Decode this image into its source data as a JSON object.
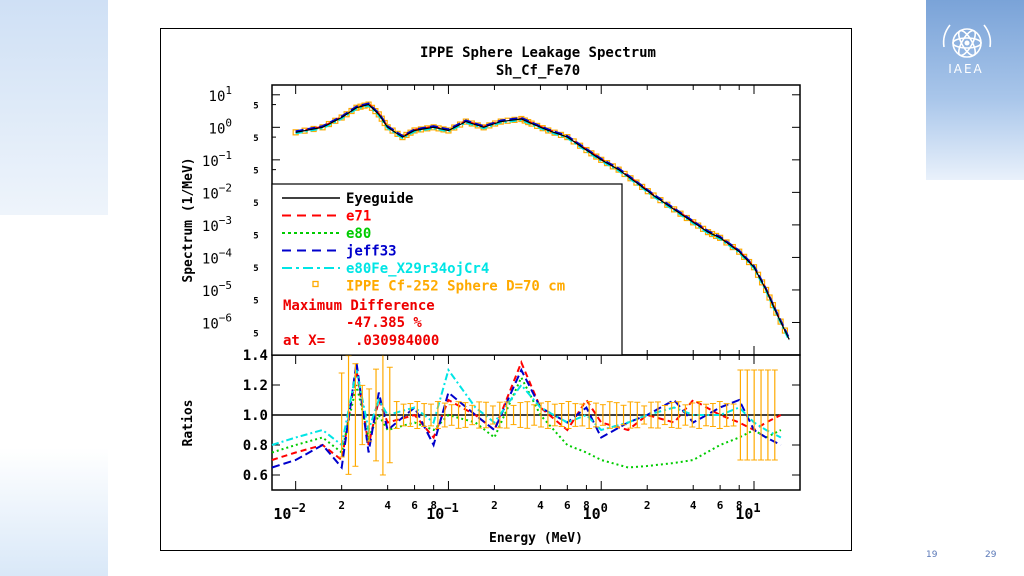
{
  "slide": {
    "logo_text": "IAEA",
    "footer_year": "19",
    "page_number": "29"
  },
  "colors": {
    "eyeguide": "#000000",
    "e71": "#ff0000",
    "e80": "#00cc00",
    "jeff33": "#0000cc",
    "e80fe": "#00e5e5",
    "exp": "#ffaa00",
    "maxdiff": "#ee0000"
  },
  "chart_data": [
    {
      "type": "line",
      "title": "IPPE Sphere Leakage Spectrum",
      "subtitle": "Sh_Cf_Fe70",
      "xlabel": "Energy (MeV)",
      "ylabel": "Spectrum (1/MeV)",
      "x_scale": "log",
      "y_scale": "log",
      "xlim": [
        0.007,
        20
      ],
      "ylim": [
        1e-07,
        20
      ],
      "grid": false,
      "legend_position": "inside-left",
      "y_ticks": [
        {
          "base": "10",
          "exp": "1",
          "value": 10
        },
        {
          "base": "10",
          "exp": "0",
          "value": 1
        },
        {
          "base": "10",
          "exp": "−1",
          "value": 0.1
        },
        {
          "base": "10",
          "exp": "−2",
          "value": 0.01
        },
        {
          "base": "10",
          "exp": "−3",
          "value": 0.001
        },
        {
          "base": "10",
          "exp": "−4",
          "value": 0.0001
        },
        {
          "base": "10",
          "exp": "−5",
          "value": 1e-05
        },
        {
          "base": "10",
          "exp": "−6",
          "value": 1e-06
        }
      ],
      "y_minor_label": "5",
      "legend": [
        {
          "label": "Eyeguide",
          "color_key": "eyeguide",
          "style": "solid"
        },
        {
          "label": "e71",
          "color_key": "e71",
          "style": "dashed"
        },
        {
          "label": "e80",
          "color_key": "e80",
          "style": "dotted"
        },
        {
          "label": "jeff33",
          "color_key": "jeff33",
          "style": "dashed"
        },
        {
          "label": "e80Fe_X29r34ojCr4",
          "color_key": "e80fe",
          "style": "dashdot"
        },
        {
          "label": "IPPE Cf-252 Sphere D=70 cm",
          "color_key": "exp",
          "style": "marker"
        }
      ],
      "max_difference": {
        "label": "Maximum Difference",
        "value": "-47.385 %",
        "at_label": "at X=",
        "at_value": ".030984000"
      },
      "series": [
        {
          "name": "Eyeguide",
          "x": [
            0.01,
            0.015,
            0.02,
            0.025,
            0.03,
            0.035,
            0.04,
            0.05,
            0.06,
            0.08,
            0.1,
            0.13,
            0.17,
            0.22,
            0.3,
            0.35,
            0.45,
            0.6,
            0.8,
            1.0,
            1.3,
            1.7,
            2.2,
            3.0,
            4.0,
            5.0,
            6.0,
            8.0,
            10,
            12,
            14,
            17
          ],
          "y": [
            0.7,
            1.0,
            2.0,
            4.0,
            5.0,
            2.5,
            1.0,
            0.5,
            0.8,
            1.0,
            0.8,
            1.5,
            1.0,
            1.5,
            1.8,
            1.3,
            0.8,
            0.5,
            0.2,
            0.1,
            0.05,
            0.02,
            0.008,
            0.003,
            0.0012,
            0.0006,
            0.0004,
            0.00015,
            5e-05,
            1e-05,
            2e-06,
            3e-07
          ]
        }
      ]
    },
    {
      "type": "line",
      "xlabel": "Energy (MeV)",
      "ylabel": "Ratios",
      "x_scale": "log",
      "xlim": [
        0.007,
        20
      ],
      "ylim": [
        0.5,
        1.4
      ],
      "grid": false,
      "y_ticks": [
        "0.6",
        "0.8",
        "1.0",
        "1.2",
        "1.4"
      ],
      "x_ticks": [
        {
          "label": "10",
          "exp": "−2",
          "value": 0.01
        },
        {
          "label": "2",
          "value": 0.02
        },
        {
          "label": "4",
          "value": 0.04
        },
        {
          "label": "6",
          "value": 0.06
        },
        {
          "label": "8",
          "value": 0.08
        },
        {
          "label": "10",
          "exp": "−1",
          "value": 0.1
        },
        {
          "label": "2",
          "value": 0.2
        },
        {
          "label": "4",
          "value": 0.4
        },
        {
          "label": "6",
          "value": 0.6
        },
        {
          "label": "8",
          "value": 0.8
        },
        {
          "label": "10",
          "exp": "0",
          "value": 1
        },
        {
          "label": "2",
          "value": 2
        },
        {
          "label": "4",
          "value": 4
        },
        {
          "label": "6",
          "value": 6
        },
        {
          "label": "8",
          "value": 8
        },
        {
          "label": "10",
          "exp": "1",
          "value": 10
        }
      ],
      "series": [
        {
          "name": "e71",
          "x": [
            0.007,
            0.01,
            0.015,
            0.02,
            0.025,
            0.03,
            0.035,
            0.04,
            0.06,
            0.08,
            0.1,
            0.15,
            0.2,
            0.3,
            0.4,
            0.6,
            0.8,
            1.0,
            1.5,
            2,
            3,
            4,
            6,
            8,
            10,
            12,
            15
          ],
          "y": [
            0.7,
            0.75,
            0.8,
            0.7,
            1.3,
            0.8,
            1.1,
            0.95,
            1.0,
            0.85,
            1.1,
            1.0,
            0.9,
            1.35,
            1.05,
            0.9,
            1.1,
            0.95,
            0.9,
            1.0,
            0.95,
            1.1,
            1.0,
            0.95,
            0.9,
            0.95,
            1.0
          ]
        },
        {
          "name": "e80",
          "x": [
            0.007,
            0.01,
            0.015,
            0.02,
            0.025,
            0.03,
            0.035,
            0.04,
            0.06,
            0.08,
            0.1,
            0.15,
            0.2,
            0.3,
            0.4,
            0.6,
            0.8,
            1.0,
            1.5,
            2,
            3,
            4,
            6,
            8,
            10,
            12,
            15
          ],
          "y": [
            0.75,
            0.8,
            0.85,
            0.75,
            1.2,
            0.85,
            1.0,
            0.9,
            0.95,
            0.9,
            1.0,
            0.95,
            0.85,
            1.25,
            1.0,
            0.8,
            0.75,
            0.7,
            0.65,
            0.66,
            0.68,
            0.7,
            0.8,
            0.85,
            0.9,
            0.85,
            0.9
          ]
        },
        {
          "name": "jeff33",
          "x": [
            0.007,
            0.01,
            0.015,
            0.02,
            0.025,
            0.03,
            0.035,
            0.04,
            0.06,
            0.08,
            0.1,
            0.15,
            0.2,
            0.3,
            0.4,
            0.6,
            0.8,
            1.0,
            1.5,
            2,
            3,
            4,
            6,
            8,
            10,
            12,
            15
          ],
          "y": [
            0.65,
            0.7,
            0.8,
            0.65,
            1.35,
            0.75,
            1.15,
            0.9,
            1.05,
            0.8,
            1.15,
            1.0,
            0.9,
            1.3,
            1.05,
            0.95,
            1.05,
            0.85,
            0.95,
            1.0,
            1.1,
            0.95,
            1.05,
            1.1,
            0.9,
            0.85,
            0.8
          ]
        },
        {
          "name": "e80Fe_X29r34ojCr4",
          "x": [
            0.007,
            0.01,
            0.015,
            0.02,
            0.025,
            0.03,
            0.035,
            0.04,
            0.06,
            0.08,
            0.1,
            0.15,
            0.2,
            0.3,
            0.4,
            0.6,
            0.8,
            1.0,
            1.5,
            2,
            3,
            4,
            6,
            8,
            10,
            12,
            15
          ],
          "y": [
            0.8,
            0.85,
            0.9,
            0.8,
            1.3,
            0.9,
            1.1,
            1.0,
            1.05,
            0.95,
            1.3,
            1.05,
            0.95,
            1.2,
            1.05,
            0.95,
            1.0,
            0.9,
            0.95,
            1.0,
            1.05,
            1.0,
            1.0,
            1.05,
            0.95,
            0.9,
            0.85
          ]
        }
      ]
    }
  ]
}
